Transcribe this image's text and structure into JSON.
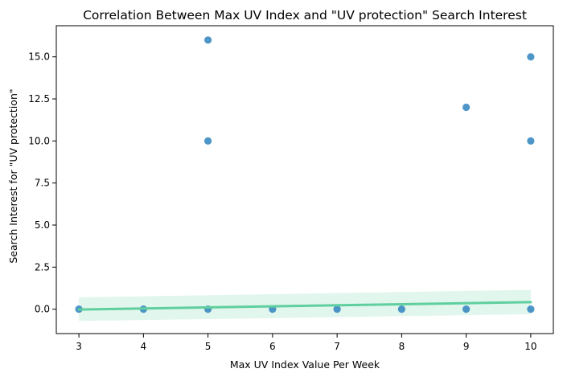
{
  "chart_data": {
    "type": "scatter",
    "title": "Correlation Between Max UV Index and \"UV protection\" Search Interest",
    "xlabel": "Max UV Index Value Per Week",
    "ylabel": "Search Interest for \"UV protection\"",
    "xlim": [
      2.65,
      10.35
    ],
    "ylim": [
      -1.45,
      16.85
    ],
    "xticks": [
      3,
      4,
      5,
      6,
      7,
      8,
      9,
      10
    ],
    "xtick_labels": [
      "3",
      "4",
      "5",
      "6",
      "7",
      "8",
      "9",
      "10"
    ],
    "yticks": [
      0,
      2.5,
      5,
      7.5,
      10,
      12.5,
      15
    ],
    "ytick_labels": [
      "0.0",
      "2.5",
      "5.0",
      "7.5",
      "10.0",
      "12.5",
      "15.0"
    ],
    "grid": false,
    "points": [
      {
        "x": 3,
        "y": 0
      },
      {
        "x": 4,
        "y": 0
      },
      {
        "x": 5,
        "y": 0
      },
      {
        "x": 5,
        "y": 10
      },
      {
        "x": 5,
        "y": 16
      },
      {
        "x": 6,
        "y": 0
      },
      {
        "x": 7,
        "y": 0
      },
      {
        "x": 8,
        "y": 0
      },
      {
        "x": 9,
        "y": 0
      },
      {
        "x": 9,
        "y": 12
      },
      {
        "x": 10,
        "y": 0
      },
      {
        "x": 10,
        "y": 10
      },
      {
        "x": 10,
        "y": 15
      }
    ],
    "regression": {
      "x": [
        3,
        10
      ],
      "y": [
        -0.02,
        0.42
      ],
      "ci_lower": [
        -0.7,
        -0.3
      ],
      "ci_upper": [
        0.7,
        1.15
      ]
    },
    "colors": {
      "points": "#2f84be",
      "regression_line": "#5fcf9f",
      "confidence_band": "#c9efdc"
    }
  }
}
